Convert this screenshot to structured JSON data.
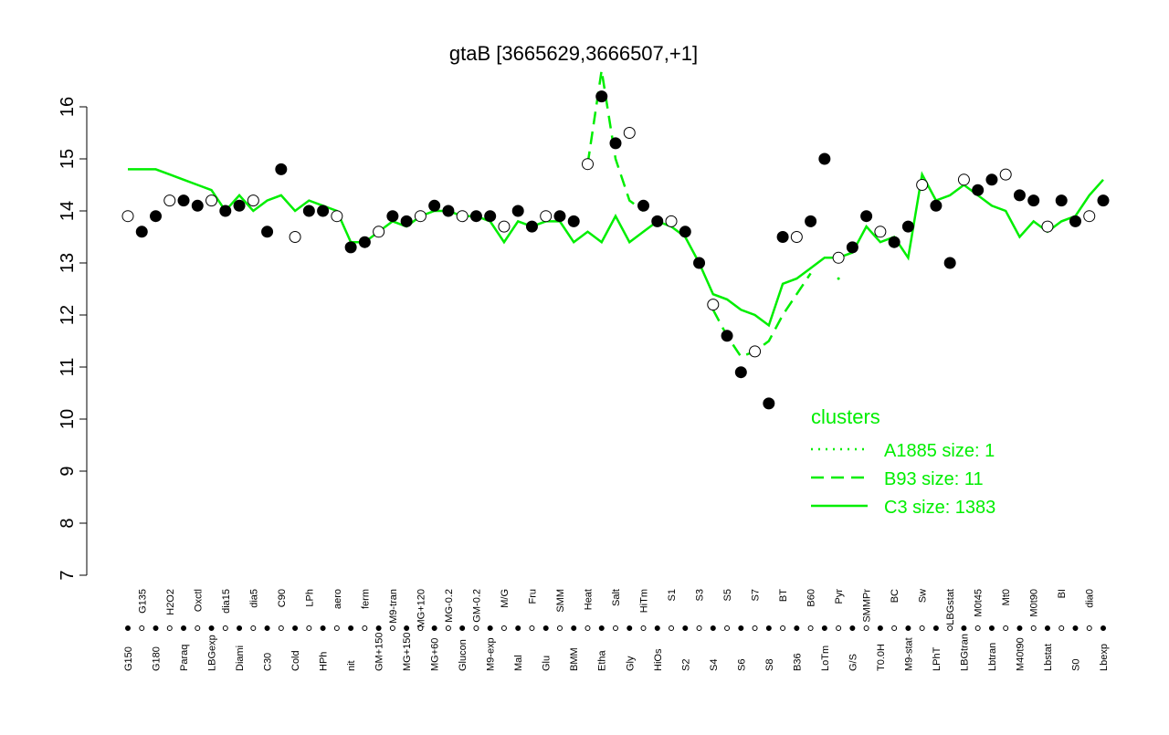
{
  "chart_data": {
    "type": "line",
    "title": "gtaB [3665629,3666507,+1]",
    "legend_title": "clusters",
    "categories": [
      "G150",
      "G135",
      "G180",
      "H2O2",
      "Paraq",
      "Oxctl",
      "LBGexp",
      "dia15",
      "Diami",
      "dia5",
      "C30",
      "C90",
      "Cold",
      "LPh",
      "HPh",
      "aero",
      "nit",
      "ferm",
      "GM+150",
      "M9-tran",
      "MG+150",
      "MG+120",
      "MG+60",
      "MG-0.2",
      "Glucon",
      "GM-0.2",
      "M9-exp",
      "M/G",
      "Mal",
      "Fru",
      "Glu",
      "SMM",
      "BMM",
      "Heat",
      "Etha",
      "Salt",
      "Gly",
      "HiTm",
      "HiOs",
      "S1",
      "S2",
      "S3",
      "S4",
      "S5",
      "S6",
      "S7",
      "S8",
      "BT",
      "B36",
      "B60",
      "LoTm",
      "Pyr",
      "G/S",
      "SMMPr",
      "T0.0H",
      "BC",
      "M9-stat",
      "Sw",
      "LPhT",
      "LBGstat",
      "LBGtran",
      "M0t45",
      "Lbtran",
      "Mt0",
      "M40t90",
      "M0t90",
      "Lbstat",
      "BI",
      "S0",
      "dia0",
      "Lbexp"
    ],
    "points": {
      "color": "#000000",
      "values": [
        13.9,
        13.6,
        13.9,
        14.2,
        14.2,
        14.1,
        14.2,
        14.0,
        14.1,
        14.2,
        13.6,
        14.8,
        13.5,
        14.0,
        14.0,
        13.9,
        13.3,
        13.4,
        13.6,
        13.9,
        13.8,
        13.9,
        14.1,
        14.0,
        13.9,
        13.9,
        13.9,
        13.7,
        14.0,
        13.7,
        13.9,
        13.9,
        13.8,
        14.9,
        16.2,
        15.3,
        15.5,
        14.1,
        13.8,
        13.8,
        13.6,
        13.0,
        12.2,
        11.6,
        10.9,
        11.3,
        10.3,
        13.5,
        13.5,
        13.8,
        15.0,
        13.1,
        13.3,
        13.9,
        13.6,
        13.4,
        13.7,
        14.5,
        14.1,
        13.0,
        14.6,
        14.4,
        14.6,
        14.7,
        14.3,
        14.2,
        13.7,
        14.2,
        13.8,
        13.9,
        14.2
      ]
    },
    "series": [
      {
        "name": "A1885 size: 1",
        "color": "#00ee00",
        "dash": "dotted",
        "values": [
          null,
          null,
          null,
          null,
          null,
          null,
          null,
          null,
          null,
          null,
          null,
          null,
          null,
          null,
          null,
          null,
          null,
          null,
          null,
          null,
          null,
          null,
          null,
          null,
          null,
          null,
          null,
          null,
          null,
          null,
          null,
          null,
          null,
          null,
          null,
          null,
          null,
          null,
          null,
          null,
          null,
          null,
          null,
          null,
          null,
          null,
          null,
          null,
          null,
          null,
          null,
          null,
          null,
          null,
          null,
          null,
          null,
          null,
          null,
          null,
          null,
          null,
          null,
          null,
          null,
          null,
          null,
          null,
          null,
          null,
          null
        ]
      },
      {
        "name": "B93 size: 11",
        "color": "#00ee00",
        "dash": "dashed",
        "values": [
          null,
          null,
          null,
          null,
          null,
          null,
          null,
          null,
          null,
          null,
          null,
          null,
          null,
          null,
          null,
          null,
          null,
          null,
          null,
          null,
          null,
          null,
          null,
          null,
          null,
          null,
          null,
          null,
          null,
          null,
          null,
          null,
          null,
          14.9,
          16.7,
          15.0,
          14.2,
          14.0,
          null,
          null,
          null,
          null,
          12.1,
          11.6,
          11.2,
          11.3,
          11.5,
          12.0,
          12.4,
          12.8,
          null,
          12.7,
          null,
          null,
          null,
          null,
          null,
          null,
          null,
          null,
          null,
          null,
          null,
          null,
          null,
          null,
          null,
          null,
          null,
          null,
          null
        ]
      },
      {
        "name": "C3 size: 1383",
        "color": "#00ee00",
        "dash": "solid",
        "values": [
          14.8,
          14.8,
          14.8,
          14.7,
          14.6,
          14.5,
          14.4,
          14.0,
          14.3,
          14.0,
          14.2,
          14.3,
          14.0,
          14.2,
          14.1,
          14.0,
          13.4,
          13.4,
          13.6,
          13.8,
          13.7,
          13.9,
          14.0,
          14.0,
          13.9,
          13.9,
          13.8,
          13.4,
          13.8,
          13.7,
          13.8,
          13.8,
          13.4,
          13.6,
          13.4,
          13.9,
          13.4,
          13.6,
          13.8,
          13.7,
          13.5,
          13.0,
          12.4,
          12.3,
          12.1,
          12.0,
          11.8,
          12.6,
          12.7,
          12.9,
          13.1,
          13.1,
          13.2,
          13.7,
          13.4,
          13.5,
          13.1,
          14.7,
          14.2,
          14.3,
          14.5,
          14.3,
          14.1,
          14.0,
          13.5,
          13.8,
          13.6,
          13.8,
          13.9,
          14.3,
          14.6
        ]
      }
    ],
    "ylim": [
      7,
      16
    ],
    "yticks": [
      7,
      8,
      9,
      10,
      11,
      12,
      13,
      14,
      15,
      16
    ]
  }
}
